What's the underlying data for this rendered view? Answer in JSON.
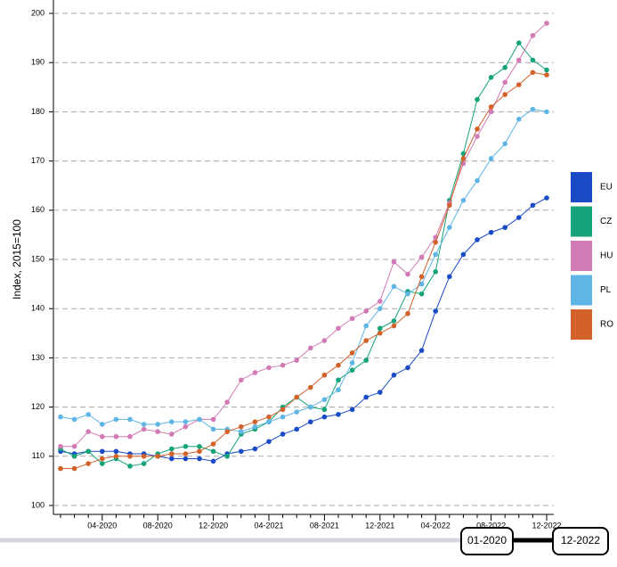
{
  "chart_data": {
    "type": "line",
    "y_label": "Index, 2015=100",
    "categories": [
      null,
      null,
      null,
      "04-2020",
      null,
      null,
      null,
      "08-2020",
      null,
      null,
      null,
      "12-2020",
      null,
      null,
      null,
      "04-2021",
      null,
      null,
      null,
      "08-2021",
      null,
      null,
      null,
      "12-2021",
      null,
      null,
      null,
      "04-2022",
      null,
      null,
      null,
      "08-2022",
      null,
      null,
      null,
      "12-2022"
    ],
    "series": [
      {
        "name": "EU",
        "color": "#1a4bc7",
        "values": [
          111,
          110.5,
          111,
          111,
          111,
          110.5,
          110.5,
          110,
          109.5,
          109.5,
          109.5,
          109,
          110.5,
          111,
          111.5,
          113,
          114.5,
          115.5,
          117,
          118,
          118.5,
          119.5,
          122,
          123,
          126.5,
          128,
          131.5,
          139.5,
          146.5,
          151,
          154,
          155.5,
          156.5,
          158.5,
          161,
          162.5
        ]
      },
      {
        "name": "CZ",
        "color": "#14a37a",
        "values": [
          111.5,
          110,
          111,
          108.5,
          109.5,
          108,
          108.5,
          110.5,
          111.5,
          112,
          112,
          111,
          110,
          114.5,
          115.5,
          117,
          120,
          122,
          120,
          119.5,
          125.5,
          127.5,
          129.5,
          136,
          137.5,
          143.5,
          143,
          147.5,
          162,
          171.5,
          182.5,
          187,
          189,
          194,
          190.5,
          188.5
        ]
      },
      {
        "name": "HU",
        "color": "#d27ab5",
        "values": [
          112,
          112,
          115,
          114,
          114,
          114,
          115.5,
          115,
          114.5,
          116,
          117.5,
          117.5,
          121,
          125.5,
          127,
          128,
          128.5,
          129.5,
          132,
          133.5,
          136,
          138,
          139.5,
          141.5,
          149.5,
          147,
          150.5,
          154.5,
          161.5,
          169.5,
          175,
          180,
          186,
          190.5,
          195.5,
          198
        ]
      },
      {
        "name": "PL",
        "color": "#5fb5e5",
        "values": [
          118,
          117.5,
          118.5,
          116.5,
          117.5,
          117.5,
          116.5,
          116.5,
          117,
          117,
          117.5,
          115.5,
          115.5,
          115,
          116,
          117,
          118,
          119,
          120,
          121.5,
          123.5,
          129,
          136.5,
          140,
          144.5,
          143,
          145,
          151,
          156.5,
          162,
          166,
          170.5,
          173.5,
          178.5,
          180.5,
          180
        ]
      },
      {
        "name": "RO",
        "color": "#d2622a",
        "values": [
          107.5,
          107.5,
          108.5,
          109.5,
          110,
          110,
          110,
          110,
          110.5,
          110.5,
          111,
          112.5,
          115,
          116,
          117,
          118,
          119.5,
          122,
          124,
          126.5,
          128.5,
          131,
          133.5,
          135,
          136.5,
          139,
          146.5,
          153.5,
          161,
          170.5,
          176.5,
          181,
          183.5,
          185.5,
          188,
          187.5
        ]
      }
    ],
    "ylim": [
      100,
      200
    ],
    "yticks": [
      100,
      110,
      120,
      130,
      140,
      150,
      160,
      170,
      180,
      190,
      200
    ],
    "grid": true,
    "legend": "right",
    "slider": {
      "start": "01-2020",
      "end": "12-2022"
    }
  }
}
